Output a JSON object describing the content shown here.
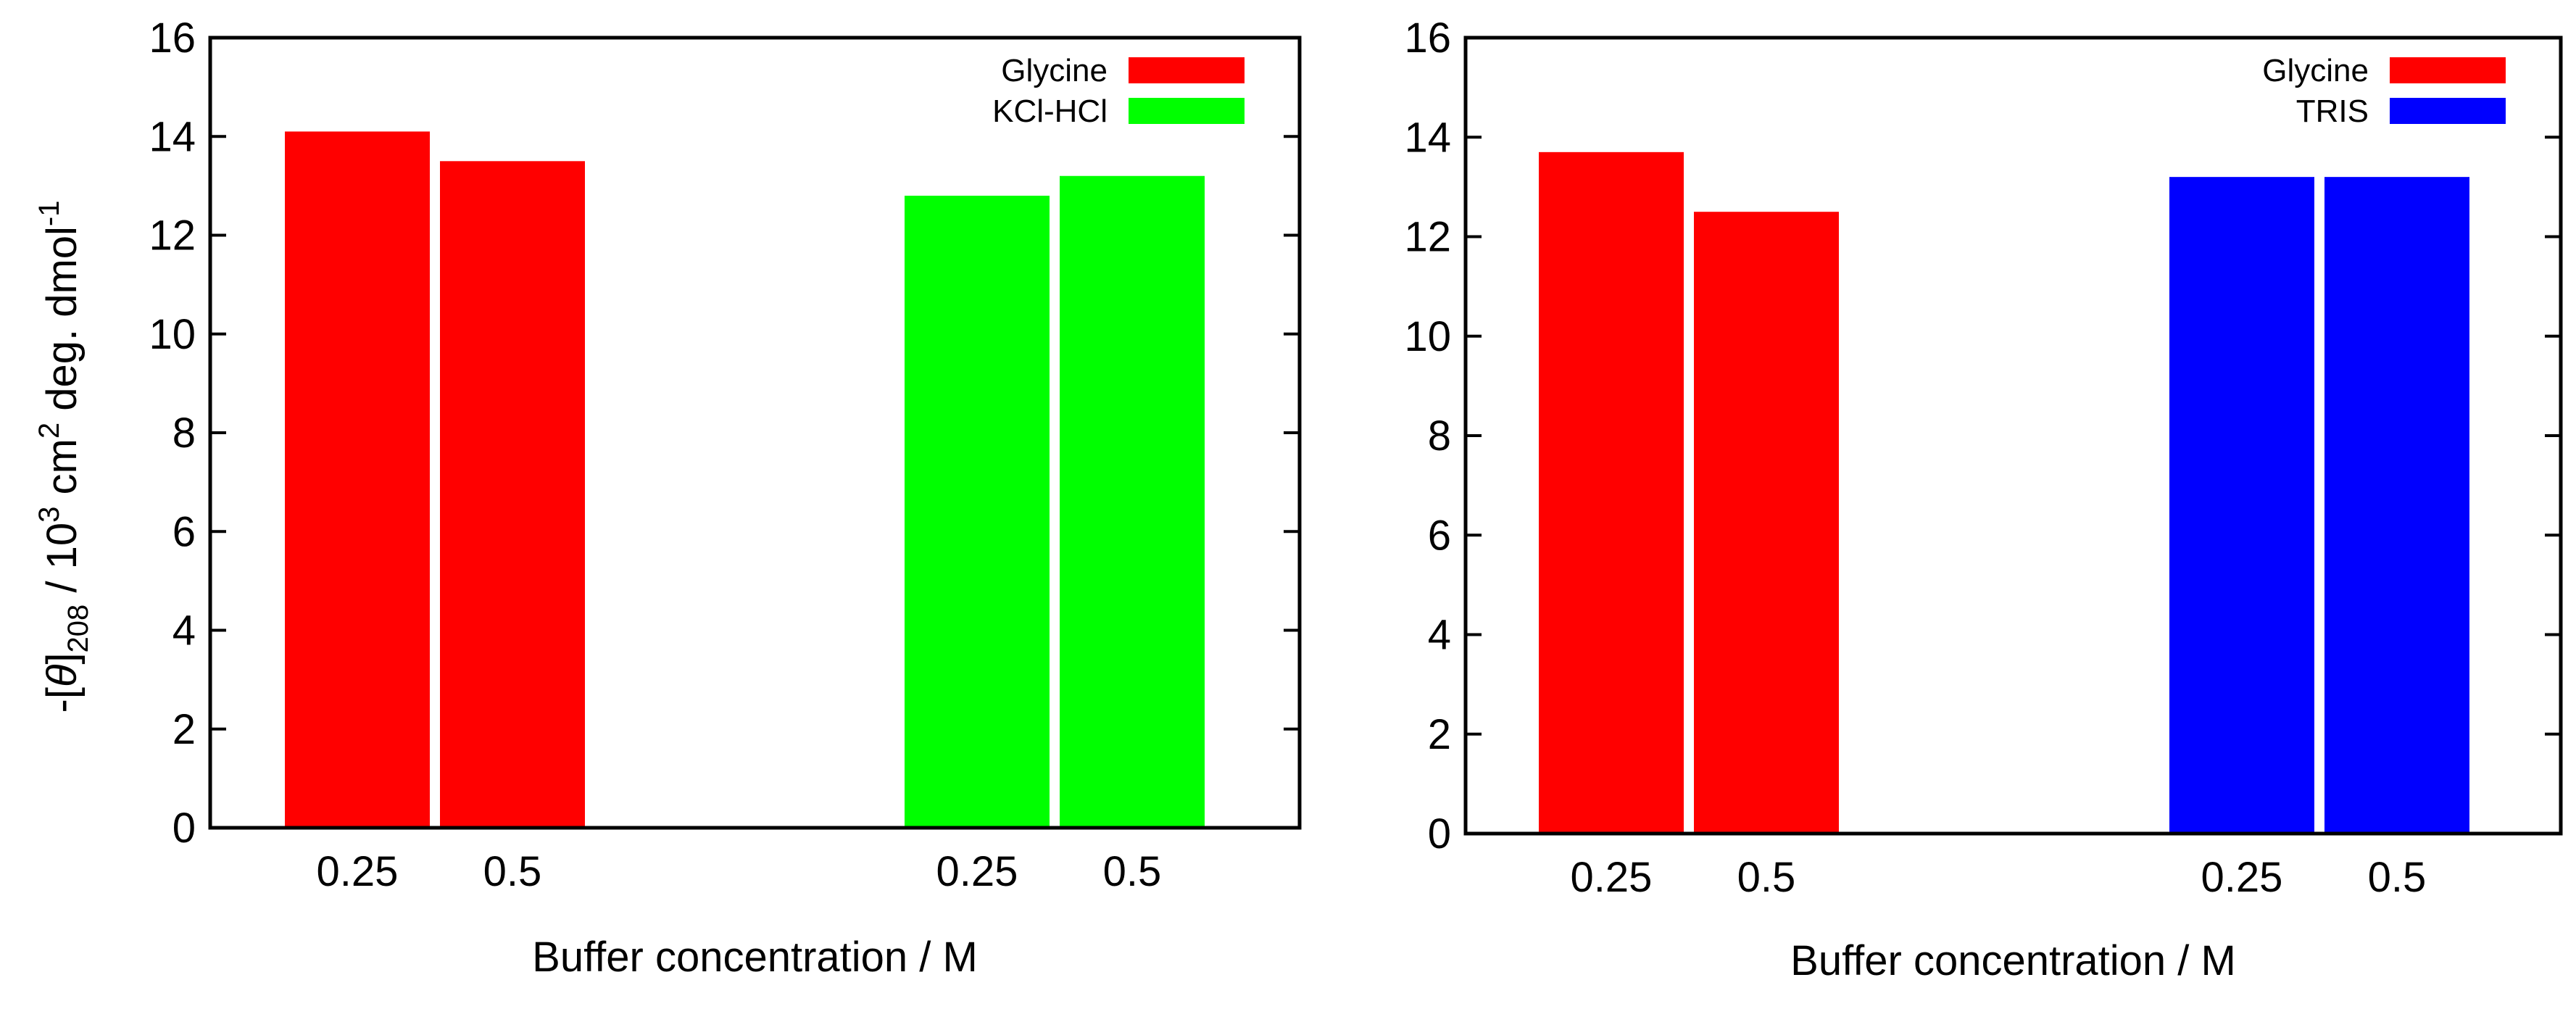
{
  "colors": {
    "glycine": "#ff0000",
    "kcl_hcl": "#00ff00",
    "tris": "#0000ff"
  },
  "chart_data": [
    {
      "type": "bar",
      "title": "",
      "xlabel": "Buffer concentration / M",
      "ylabel": {
        "prefix": "-[",
        "theta": "θ",
        "bracket": "]",
        "subscript": "208",
        "middle": " / 10",
        "sup1": "3",
        "middle2": " cm",
        "sup2": "2",
        "suffix": " deg. dmol",
        "sup3": "-1"
      },
      "ylim": [
        0,
        16
      ],
      "yticks": [
        "0",
        "2",
        "4",
        "6",
        "8",
        "10",
        "12",
        "14",
        "16"
      ],
      "legend_position": "top-right",
      "series": [
        {
          "name": "Glycine",
          "color": "#ff0000",
          "categories": [
            "0.25",
            "0.5"
          ],
          "values": [
            14.1,
            13.5
          ]
        },
        {
          "name": "KCl-HCl",
          "color": "#00ff00",
          "categories": [
            "0.25",
            "0.5"
          ],
          "values": [
            12.8,
            13.2
          ]
        }
      ]
    },
    {
      "type": "bar",
      "title": "",
      "xlabel": "Buffer concentration / M",
      "ylim": [
        0,
        16
      ],
      "yticks": [
        "0",
        "2",
        "4",
        "6",
        "8",
        "10",
        "12",
        "14",
        "16"
      ],
      "legend_position": "top-right",
      "series": [
        {
          "name": "Glycine",
          "color": "#ff0000",
          "categories": [
            "0.25",
            "0.5"
          ],
          "values": [
            13.7,
            12.5
          ]
        },
        {
          "name": "TRIS",
          "color": "#0000ff",
          "categories": [
            "0.25",
            "0.5"
          ],
          "values": [
            13.2,
            13.2
          ]
        }
      ]
    }
  ]
}
